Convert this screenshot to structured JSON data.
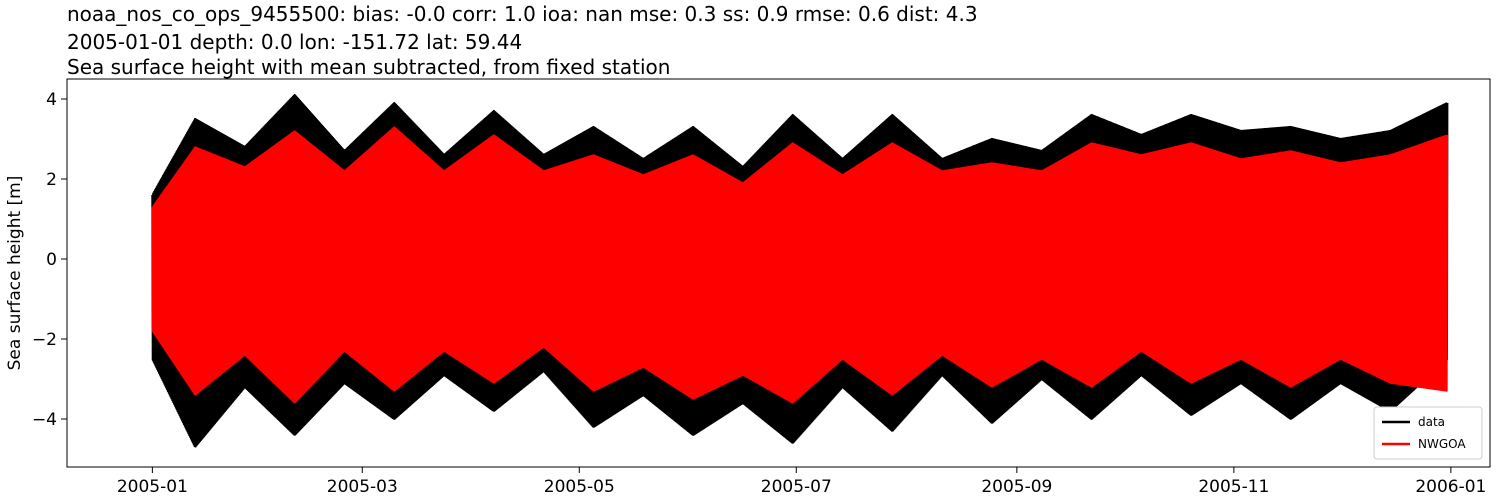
{
  "title": {
    "line1": "noaa_nos_co_ops_9455500: bias: -0.0  corr: 1.0  ioa: nan  mse: 0.3  ss: 0.9  rmse: 0.6  dist: 4.3",
    "line2": "2005-01-01 depth: 0.0 lon: -151.72 lat: 59.44",
    "line3": "Sea surface height with mean subtracted, from fixed station"
  },
  "chart_data": {
    "type": "line",
    "title": "noaa_nos_co_ops_9455500: bias: -0.0  corr: 1.0  ioa: nan  mse: 0.3  ss: 0.9  rmse: 0.6  dist: 4.3 / 2005-01-01 depth: 0.0 lon: -151.72 lat: 59.44 / Sea surface height with mean subtracted, from fixed station",
    "xlabel": "",
    "ylabel": "Sea surface height [m]",
    "xlim": [
      "2004-12-08",
      "2006-01-12"
    ],
    "ylim": [
      -5.2,
      4.5
    ],
    "x_ticks": [
      "2005-01",
      "2005-03",
      "2005-05",
      "2005-07",
      "2005-09",
      "2005-11",
      "2006-01"
    ],
    "y_ticks": [
      -4,
      -2,
      0,
      2,
      4
    ],
    "legend": {
      "placement": "lower-right",
      "entries": [
        "data",
        "NWGOA"
      ]
    },
    "grid": false,
    "series": [
      {
        "name": "data",
        "color": "#000000",
        "x": [
          "2005-01-01",
          "2005-01-13",
          "2005-01-27",
          "2005-02-10",
          "2005-02-24",
          "2005-03-10",
          "2005-03-24",
          "2005-04-07",
          "2005-04-21",
          "2005-05-05",
          "2005-05-19",
          "2005-06-02",
          "2005-06-16",
          "2005-06-30",
          "2005-07-14",
          "2005-07-28",
          "2005-08-11",
          "2005-08-25",
          "2005-09-08",
          "2005-09-22",
          "2005-10-06",
          "2005-10-20",
          "2005-11-03",
          "2005-11-17",
          "2005-12-01",
          "2005-12-15",
          "2005-12-31"
        ],
        "upper": [
          1.6,
          3.5,
          2.8,
          4.1,
          2.7,
          3.9,
          2.6,
          3.7,
          2.6,
          3.3,
          2.5,
          3.3,
          2.3,
          3.6,
          2.5,
          3.6,
          2.5,
          3.0,
          2.7,
          3.6,
          3.1,
          3.6,
          3.2,
          3.3,
          3.0,
          3.2,
          3.9
        ],
        "lower": [
          -2.5,
          -4.7,
          -3.2,
          -4.4,
          -3.1,
          -4.0,
          -2.9,
          -3.8,
          -2.8,
          -4.2,
          -3.4,
          -4.4,
          -3.6,
          -4.6,
          -3.2,
          -4.3,
          -2.9,
          -4.1,
          -3.0,
          -4.0,
          -2.9,
          -3.9,
          -3.1,
          -4.0,
          -3.1,
          -3.8,
          -2.5
        ]
      },
      {
        "name": "NWGOA",
        "color": "#ff0000",
        "x": [
          "2005-01-01",
          "2005-01-13",
          "2005-01-27",
          "2005-02-10",
          "2005-02-24",
          "2005-03-10",
          "2005-03-24",
          "2005-04-07",
          "2005-04-21",
          "2005-05-05",
          "2005-05-19",
          "2005-06-02",
          "2005-06-16",
          "2005-06-30",
          "2005-07-14",
          "2005-07-28",
          "2005-08-11",
          "2005-08-25",
          "2005-09-08",
          "2005-09-22",
          "2005-10-06",
          "2005-10-20",
          "2005-11-03",
          "2005-11-17",
          "2005-12-01",
          "2005-12-15",
          "2005-12-31"
        ],
        "upper": [
          1.3,
          2.8,
          2.3,
          3.2,
          2.2,
          3.3,
          2.2,
          3.1,
          2.2,
          2.6,
          2.1,
          2.6,
          1.9,
          2.9,
          2.1,
          2.9,
          2.2,
          2.4,
          2.2,
          2.9,
          2.6,
          2.9,
          2.5,
          2.7,
          2.4,
          2.6,
          3.1
        ],
        "lower": [
          -1.8,
          -3.4,
          -2.4,
          -3.6,
          -2.3,
          -3.3,
          -2.3,
          -3.1,
          -2.2,
          -3.3,
          -2.7,
          -3.5,
          -2.9,
          -3.6,
          -2.5,
          -3.4,
          -2.4,
          -3.2,
          -2.5,
          -3.2,
          -2.3,
          -3.1,
          -2.5,
          -3.2,
          -2.5,
          -3.1,
          -3.3
        ]
      }
    ]
  }
}
